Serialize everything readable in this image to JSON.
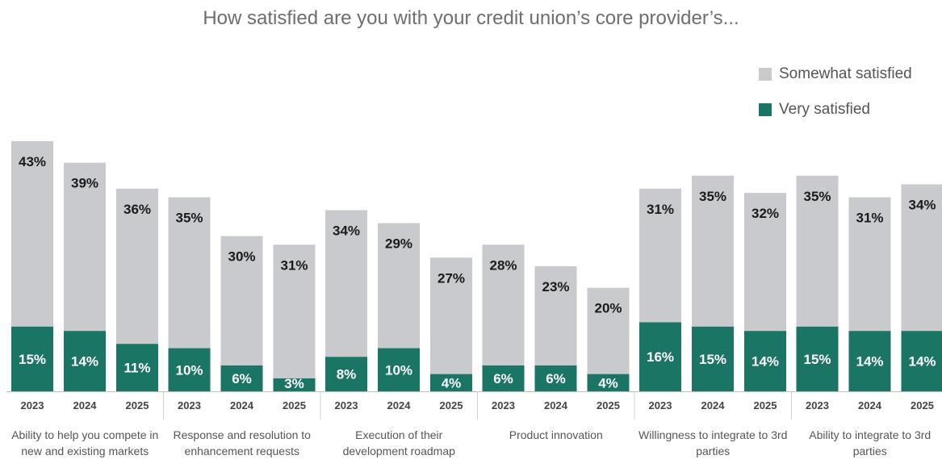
{
  "chart_data": {
    "type": "bar",
    "stacked": true,
    "title": "How satisfied are you with your credit union’s core provider’s...",
    "years": [
      "2023",
      "2024",
      "2025"
    ],
    "groups": [
      {
        "label": "Ability to help you compete in new and existing markets",
        "very": [
          15,
          14,
          11
        ],
        "somewhat": [
          43,
          39,
          36
        ]
      },
      {
        "label": "Response and resolution to enhancement requests",
        "very": [
          10,
          6,
          3
        ],
        "somewhat": [
          35,
          30,
          31
        ]
      },
      {
        "label": "Execution of their development roadmap",
        "very": [
          8,
          10,
          4
        ],
        "somewhat": [
          34,
          29,
          27
        ]
      },
      {
        "label": "Product innovation",
        "very": [
          6,
          6,
          4
        ],
        "somewhat": [
          28,
          23,
          20
        ]
      },
      {
        "label": "Willingness to integrate to 3rd parties",
        "very": [
          16,
          15,
          14
        ],
        "somewhat": [
          31,
          35,
          32
        ]
      },
      {
        "label": "Ability to integrate to 3rd parties",
        "very": [
          15,
          14,
          14
        ],
        "somewhat": [
          35,
          31,
          34
        ]
      }
    ],
    "series": [
      {
        "name": "Somewhat satisfied",
        "color": "#c8cacd"
      },
      {
        "name": "Very satisfied",
        "color": "#1b7565"
      }
    ],
    "legend_position": "top-right",
    "grid": false
  }
}
